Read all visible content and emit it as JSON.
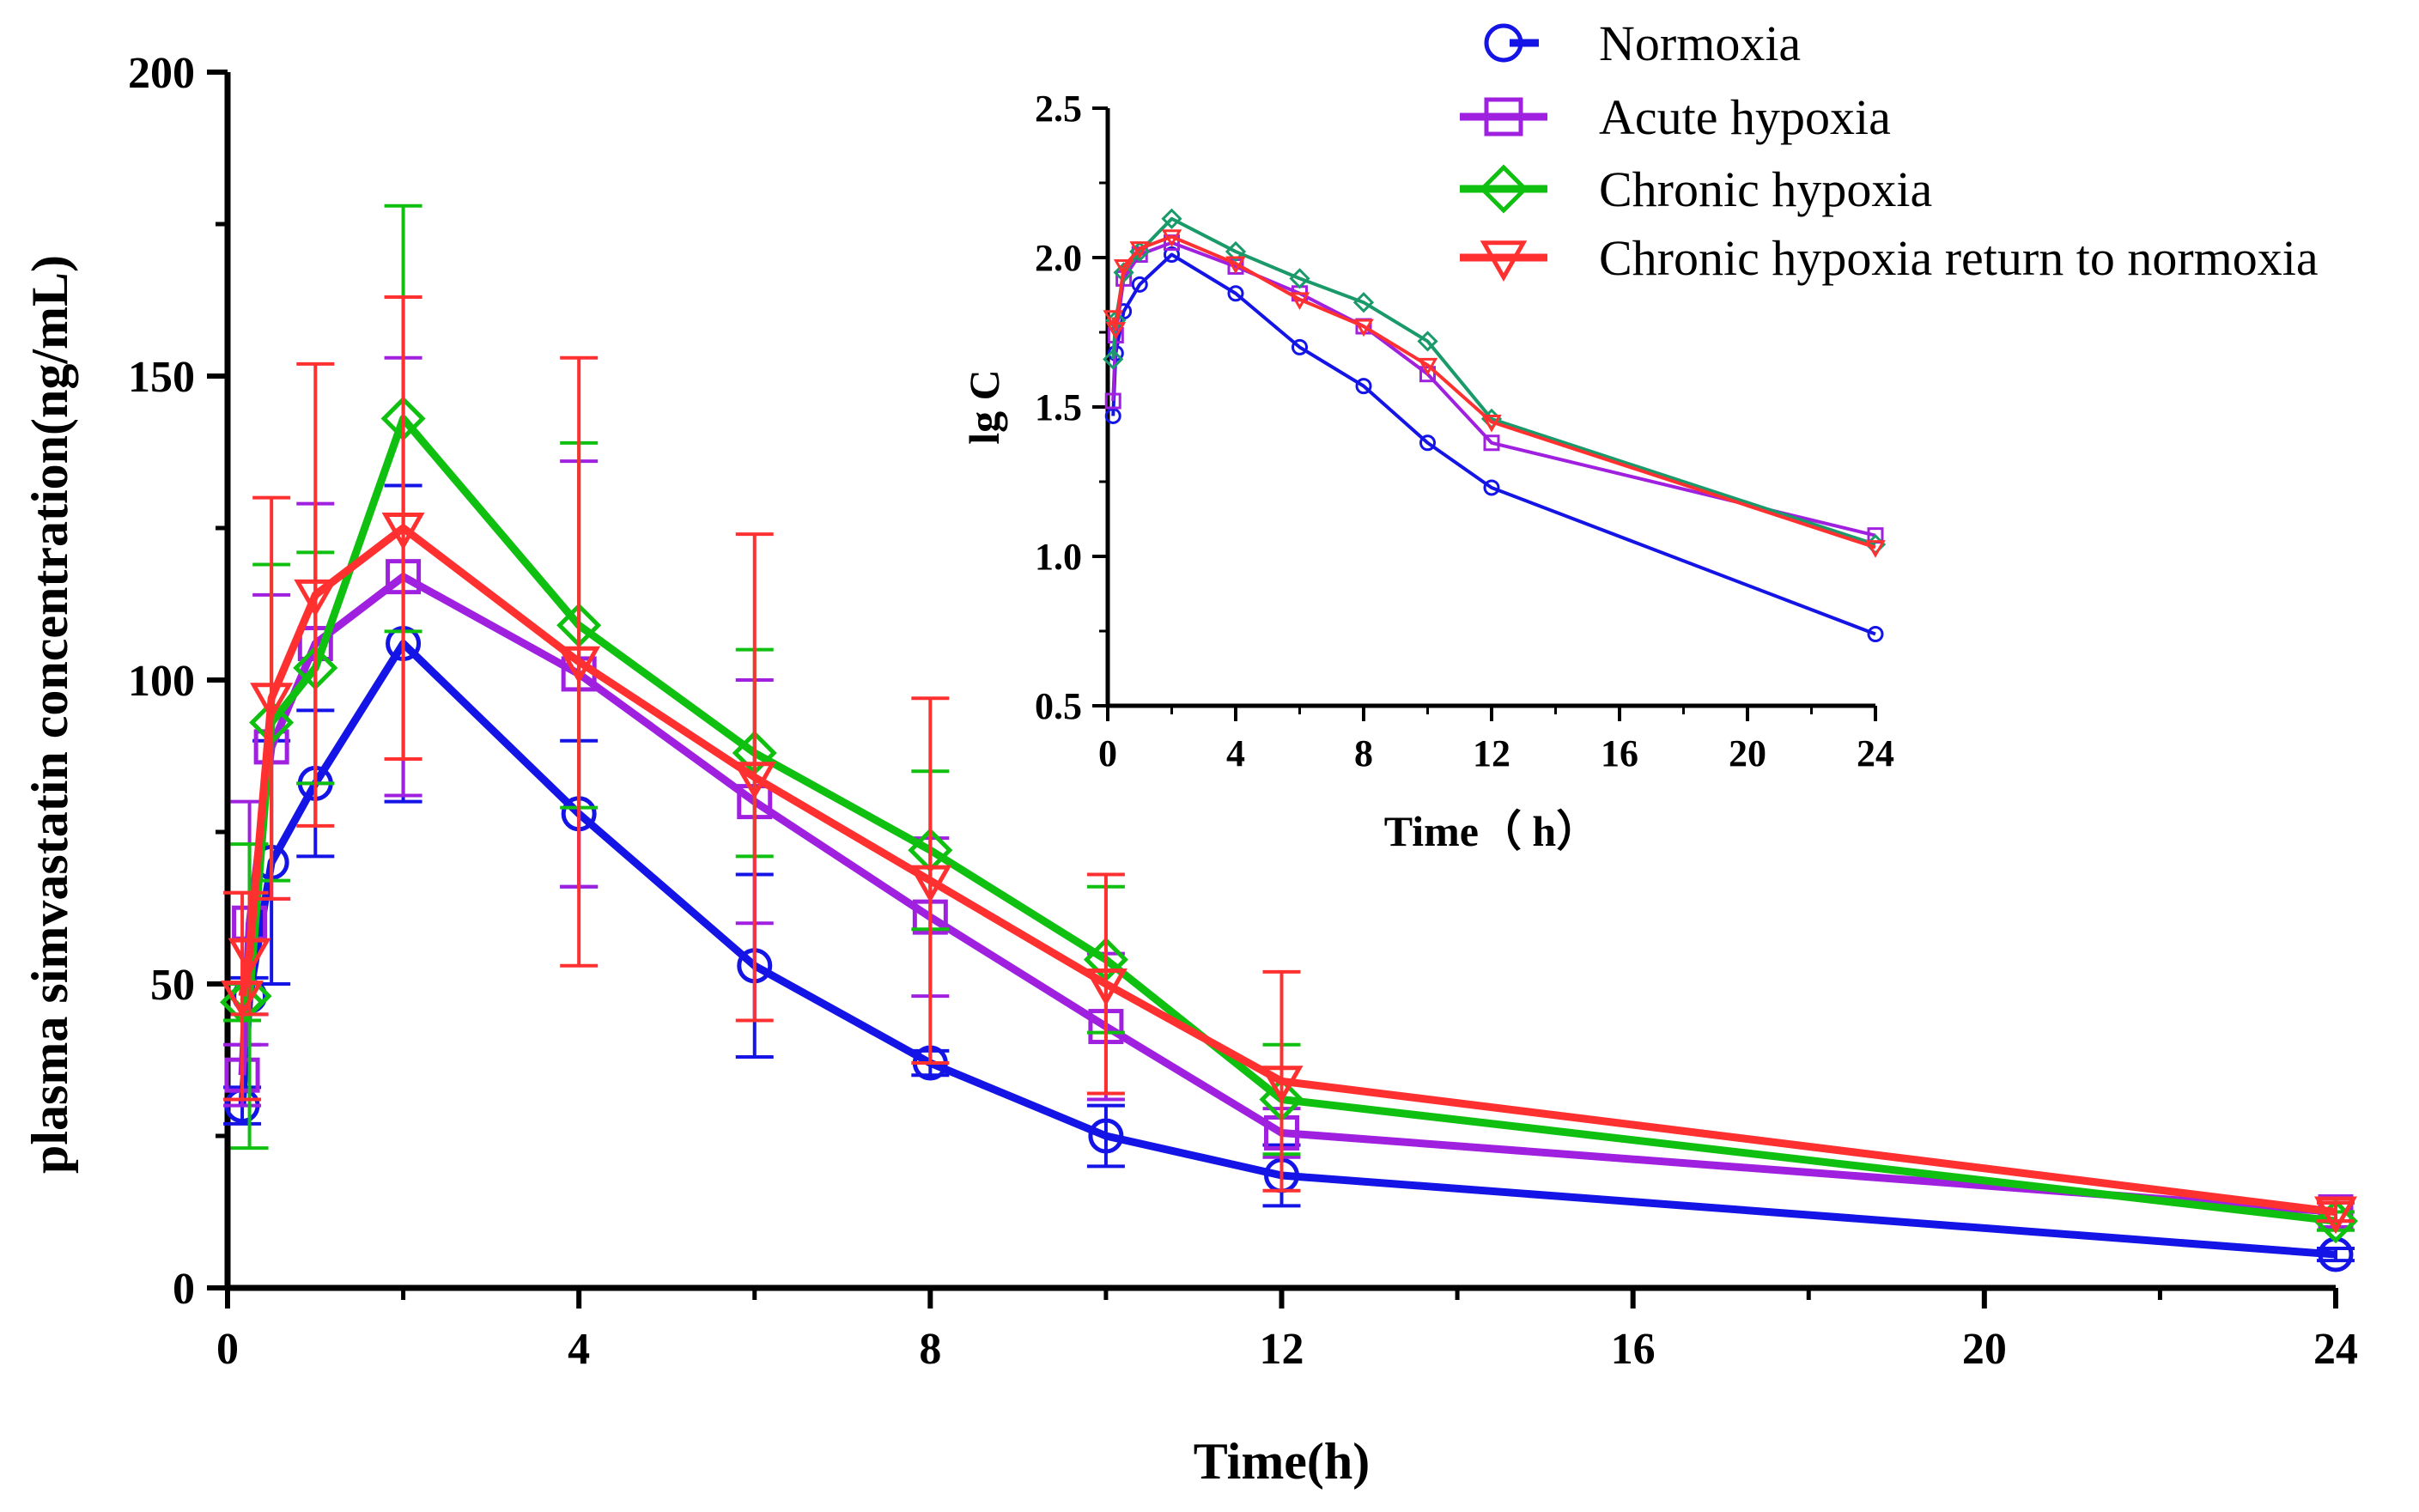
{
  "chart_data": [
    {
      "type": "line",
      "name": "main",
      "title": "",
      "xlabel": "Time(h)",
      "ylabel": "plasma simvastatin concentration(ng/mL)",
      "xlim": [
        0,
        24
      ],
      "ylim": [
        0,
        200
      ],
      "xticks": [
        0,
        4,
        8,
        12,
        16,
        20,
        24
      ],
      "yticks": [
        0,
        50,
        100,
        150,
        200
      ],
      "x": [
        0.167,
        0.25,
        0.5,
        1,
        2,
        4,
        6,
        8,
        10,
        12,
        24
      ],
      "series": [
        {
          "name": "Normoxia",
          "color": "#1414e6",
          "marker": "circle",
          "values": [
            30,
            48,
            70,
            83,
            106,
            78,
            53,
            37,
            25,
            18.5,
            5.5
          ],
          "sd": [
            3,
            3,
            20,
            12,
            26,
            12,
            15,
            2,
            5,
            5,
            1
          ]
        },
        {
          "name": "Acute hypoxia",
          "color": "#a020e0",
          "marker": "square",
          "values": [
            35,
            60,
            89,
            106,
            117,
            101,
            80,
            61,
            43,
            25.5,
            12.5
          ],
          "sd": [
            5,
            20,
            25,
            23,
            36,
            35,
            20,
            13,
            12,
            4,
            1.5
          ]
        },
        {
          "name": "Chronic hypoxia",
          "color": "#10c010",
          "marker": "diamond",
          "values": [
            47,
            48,
            93,
            102,
            143,
            109,
            88,
            72,
            54,
            31,
            11
          ],
          "sd": [
            3,
            25,
            26,
            19,
            35,
            30,
            17,
            13,
            12,
            9,
            1.5
          ]
        },
        {
          "name": "Chronic hypoxia return to normoxia",
          "color": "#ff3030",
          "marker": "triangle-down",
          "values": [
            48,
            55,
            97,
            114,
            125,
            103,
            84,
            67,
            50,
            34,
            12.5
          ],
          "sd": [
            17,
            10,
            33,
            38,
            38,
            50,
            40,
            30,
            18,
            18,
            1.5
          ]
        }
      ]
    },
    {
      "type": "line",
      "name": "inset",
      "title": "",
      "xlabel": "Time（ h）",
      "ylabel": "lg C",
      "xlim": [
        0,
        24
      ],
      "ylim": [
        0.5,
        2.5
      ],
      "xticks": [
        0,
        4,
        8,
        12,
        16,
        20,
        24
      ],
      "yticks": [
        "0.5",
        "1.0",
        "1.5",
        "2.0",
        "2.5"
      ],
      "x": [
        0.167,
        0.25,
        0.5,
        1,
        2,
        4,
        6,
        8,
        10,
        12,
        24
      ],
      "series": [
        {
          "name": "Normoxia",
          "color": "#1414e6",
          "marker": "circle",
          "values": [
            1.47,
            1.68,
            1.82,
            1.91,
            2.01,
            1.88,
            1.7,
            1.57,
            1.38,
            1.23,
            0.74
          ]
        },
        {
          "name": "Acute hypoxia",
          "color": "#a020e0",
          "marker": "square",
          "values": [
            1.52,
            1.74,
            1.93,
            2.01,
            2.05,
            1.97,
            1.88,
            1.77,
            1.61,
            1.38,
            1.07
          ]
        },
        {
          "name": "Chronic hypoxia",
          "color": "#1a9a6a",
          "marker": "diamond",
          "values": [
            1.66,
            1.79,
            1.95,
            2.02,
            2.13,
            2.02,
            1.93,
            1.85,
            1.72,
            1.46,
            1.04
          ]
        },
        {
          "name": "Chronic hypoxia return to normoxia",
          "color": "#ff3030",
          "marker": "triangle-down",
          "values": [
            1.8,
            1.76,
            1.97,
            2.03,
            2.07,
            1.98,
            1.86,
            1.77,
            1.64,
            1.45,
            1.03
          ]
        }
      ]
    }
  ],
  "legend": {
    "position": "top-right",
    "items": [
      {
        "label": "Normoxia",
        "color": "#1414e6",
        "marker": "circle"
      },
      {
        "label": "Acute hypoxia",
        "color": "#a020e0",
        "marker": "square"
      },
      {
        "label": "Chronic hypoxia",
        "color": "#10c010",
        "marker": "diamond"
      },
      {
        "label": "Chronic hypoxia return to normoxia",
        "color": "#ff3030",
        "marker": "triangle-down"
      }
    ]
  }
}
